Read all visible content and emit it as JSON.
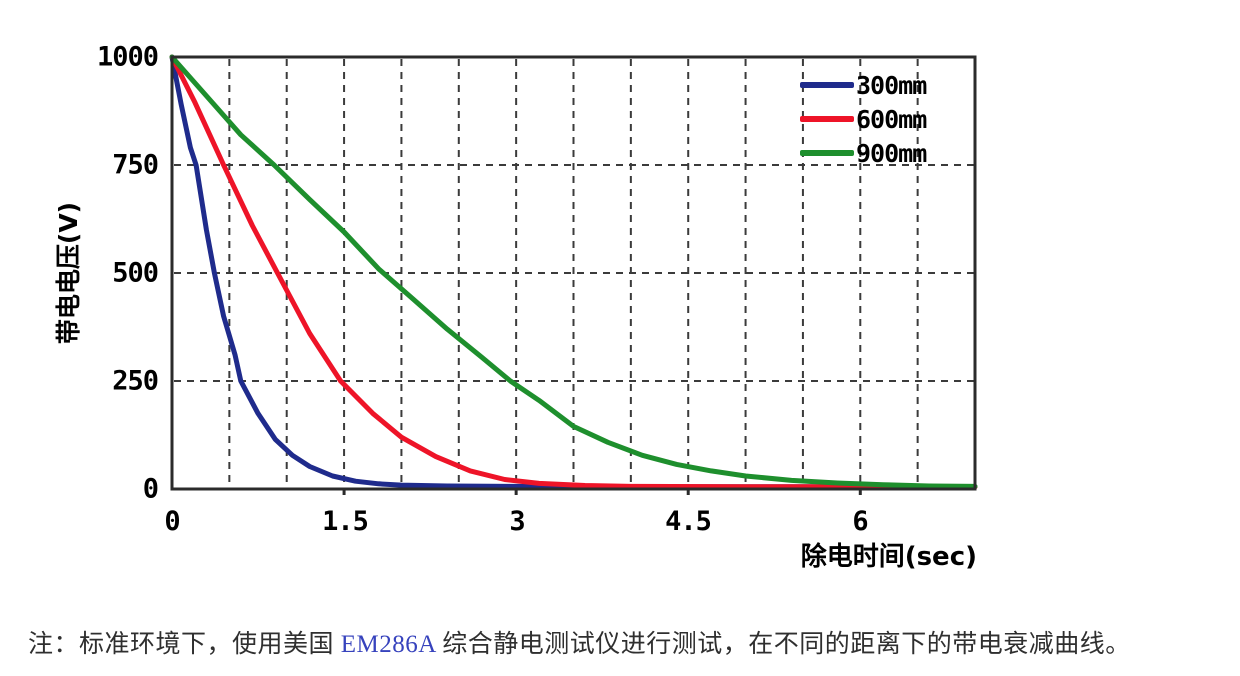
{
  "chart": {
    "y_axis": {
      "label": "带电电压(V)",
      "ticks": [
        "1000",
        "750",
        "500",
        "250",
        "0"
      ]
    },
    "x_axis": {
      "label": "除电时间(sec)",
      "ticks": [
        "0",
        "1.5",
        "3",
        "4.5",
        "6"
      ]
    }
  },
  "chart_data": {
    "type": "line",
    "title": "",
    "xlabel": "除电时间(sec)",
    "ylabel": "带电电压(V)",
    "xlim": [
      0,
      7
    ],
    "ylim": [
      0,
      1000
    ],
    "x_major_ticks": [
      0,
      1.5,
      3,
      4.5,
      6
    ],
    "y_major_ticks": [
      0,
      250,
      500,
      750,
      1000
    ],
    "x_grid_step": 0.5,
    "y_grid_step": 250,
    "grid": "dashed",
    "grid_color": "#3b3b3b",
    "frame_color": "#2b2b2b",
    "legend_position": "top-right-inside",
    "series": [
      {
        "name": "300mm",
        "color": "#1f2b8c",
        "points": [
          [
            0,
            1000
          ],
          [
            0.08,
            890
          ],
          [
            0.16,
            790
          ],
          [
            0.21,
            750
          ],
          [
            0.3,
            600
          ],
          [
            0.37,
            500
          ],
          [
            0.45,
            400
          ],
          [
            0.55,
            310
          ],
          [
            0.6,
            250
          ],
          [
            0.75,
            175
          ],
          [
            0.9,
            115
          ],
          [
            1.05,
            78
          ],
          [
            1.2,
            52
          ],
          [
            1.4,
            30
          ],
          [
            1.6,
            18
          ],
          [
            1.8,
            12
          ],
          [
            2.0,
            9
          ],
          [
            2.4,
            7
          ],
          [
            3.0,
            6
          ],
          [
            4.0,
            5
          ],
          [
            5.0,
            5
          ],
          [
            6.0,
            5
          ],
          [
            7.0,
            5
          ]
        ]
      },
      {
        "name": "600mm",
        "color": "#ee1428",
        "points": [
          [
            0,
            1000
          ],
          [
            0.2,
            895
          ],
          [
            0.45,
            750
          ],
          [
            0.7,
            610
          ],
          [
            0.92,
            500
          ],
          [
            1.2,
            360
          ],
          [
            1.47,
            250
          ],
          [
            1.75,
            175
          ],
          [
            2.0,
            120
          ],
          [
            2.3,
            75
          ],
          [
            2.6,
            42
          ],
          [
            2.9,
            22
          ],
          [
            3.2,
            13
          ],
          [
            3.6,
            8
          ],
          [
            4.0,
            6
          ],
          [
            5.0,
            5
          ],
          [
            6.0,
            5
          ],
          [
            7.0,
            5
          ]
        ]
      },
      {
        "name": "900mm",
        "color": "#1e8f2d",
        "points": [
          [
            0,
            1000
          ],
          [
            0.3,
            910
          ],
          [
            0.6,
            820
          ],
          [
            0.89,
            750
          ],
          [
            1.2,
            670
          ],
          [
            1.5,
            595
          ],
          [
            1.8,
            510
          ],
          [
            2.1,
            440
          ],
          [
            2.4,
            370
          ],
          [
            2.7,
            305
          ],
          [
            2.95,
            250
          ],
          [
            3.2,
            205
          ],
          [
            3.5,
            145
          ],
          [
            3.8,
            108
          ],
          [
            4.1,
            78
          ],
          [
            4.4,
            57
          ],
          [
            4.7,
            42
          ],
          [
            5.0,
            30
          ],
          [
            5.4,
            20
          ],
          [
            5.8,
            14
          ],
          [
            6.2,
            10
          ],
          [
            6.6,
            7
          ],
          [
            7.0,
            6
          ]
        ]
      }
    ]
  },
  "note": {
    "prefix": "注：标准环境下，使用美国 ",
    "product_code": "EM286A",
    "suffix": " 综合静电测试仪进行测试，在不同的距离下的带电衰减曲线。",
    "link_color": "#3743bd"
  }
}
